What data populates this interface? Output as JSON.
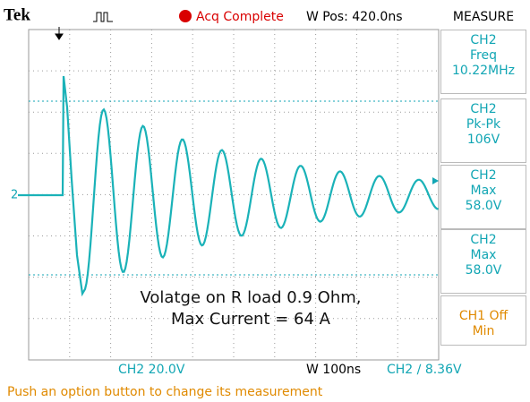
{
  "header": {
    "brand": "Tek",
    "status": "Acq Complete",
    "wpos": "W Pos: 420.0ns",
    "panel_title": "MEASURE"
  },
  "measurements": [
    {
      "channel": "CH2",
      "name": "Freq",
      "value": "10.22MHz"
    },
    {
      "channel": "CH2",
      "name": "Pk-Pk",
      "value": "106V"
    },
    {
      "channel": "CH2",
      "name": "Max",
      "value": "58.0V"
    },
    {
      "channel": "CH2",
      "name": "Max",
      "value": "58.0V"
    },
    {
      "channel": "CH1 Off",
      "name": "Min"
    }
  ],
  "channel_marker": "2",
  "annotation": [
    "Volatge on R load 0.9 Ohm,",
    "Max Current = 64 A"
  ],
  "footer": {
    "ch_scale": "CH2  20.0V",
    "timebase": "W 100ns",
    "trigger": "CH2 ∕ 8.36V",
    "message": "Push an option button to change its measurement"
  }
}
